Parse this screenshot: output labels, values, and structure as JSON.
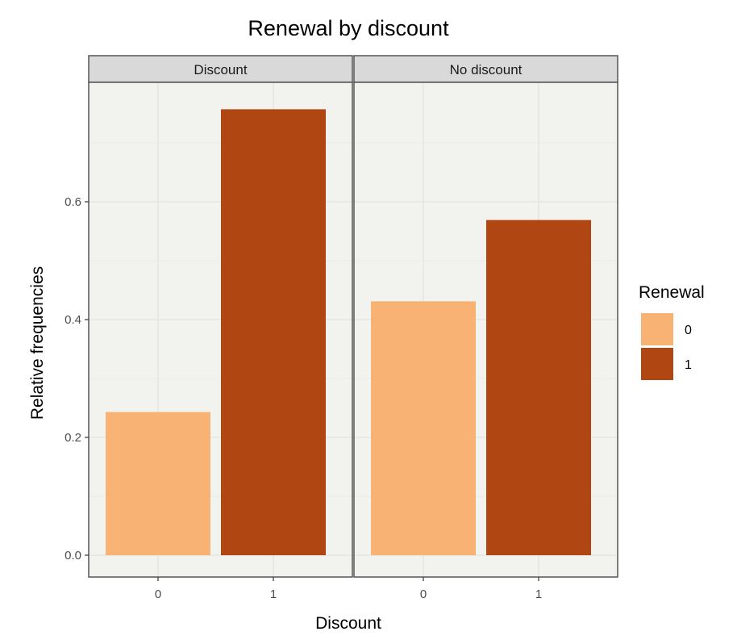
{
  "chart_data": {
    "type": "bar",
    "title": "Renewal by discount",
    "xlabel": "Discount",
    "ylabel": "Relative frequencies",
    "ylim": [
      0,
      0.79
    ],
    "yticks": [
      "0.0",
      "0.2",
      "0.4",
      "0.6"
    ],
    "ytick_values": [
      0,
      0.2,
      0.4,
      0.6
    ],
    "categories": [
      "0",
      "1"
    ],
    "grid": true,
    "legend": {
      "title": "Renewal",
      "placement": "right",
      "entries": [
        {
          "label": "0",
          "color": "#F8B273"
        },
        {
          "label": "1",
          "color": "#B04713"
        }
      ]
    },
    "panels": [
      {
        "name": "Discount",
        "values": [
          0.243,
          0.757
        ]
      },
      {
        "name": "No discount",
        "values": [
          0.431,
          0.569
        ]
      }
    ]
  },
  "colors": {
    "panel_bg": "#F2F2EE",
    "strip_bg": "#D9D9D9",
    "grid": "#E6E6E3",
    "frame": "#555555"
  }
}
